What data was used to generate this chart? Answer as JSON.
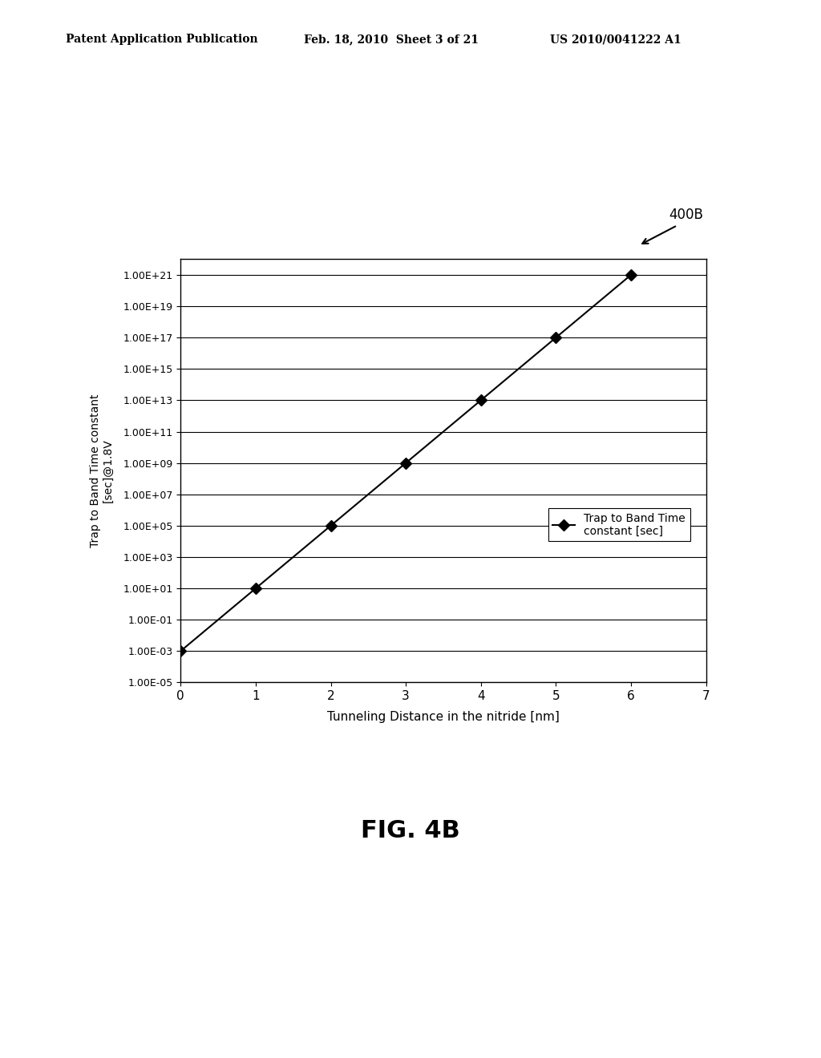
{
  "x_data": [
    0,
    1,
    2,
    3,
    4,
    5,
    6
  ],
  "y_data": [
    0.001,
    10.0,
    100000.0,
    1000000000.0,
    10000000000000.0,
    1e+17,
    1e+21
  ],
  "xlabel": "Tunneling Distance in the nitride [nm]",
  "ylabel": "Trap to Band Time constant\n[sec]@1.8V",
  "xlim": [
    0,
    7
  ],
  "yticks_exp": [
    -5,
    -3,
    -1,
    1,
    3,
    5,
    7,
    9,
    11,
    13,
    15,
    17,
    19,
    21
  ],
  "xticks": [
    0,
    1,
    2,
    3,
    4,
    5,
    6,
    7
  ],
  "legend_label": "Trap to Band Time\nconstant [sec]",
  "marker": "D",
  "line_color": "#000000",
  "background_color": "#ffffff",
  "label_400B": "400B",
  "fig_label": "FIG. 4B",
  "header_left": "Patent Application Publication",
  "header_mid": "Feb. 18, 2010  Sheet 3 of 21",
  "header_right": "US 2010/0041222 A1"
}
